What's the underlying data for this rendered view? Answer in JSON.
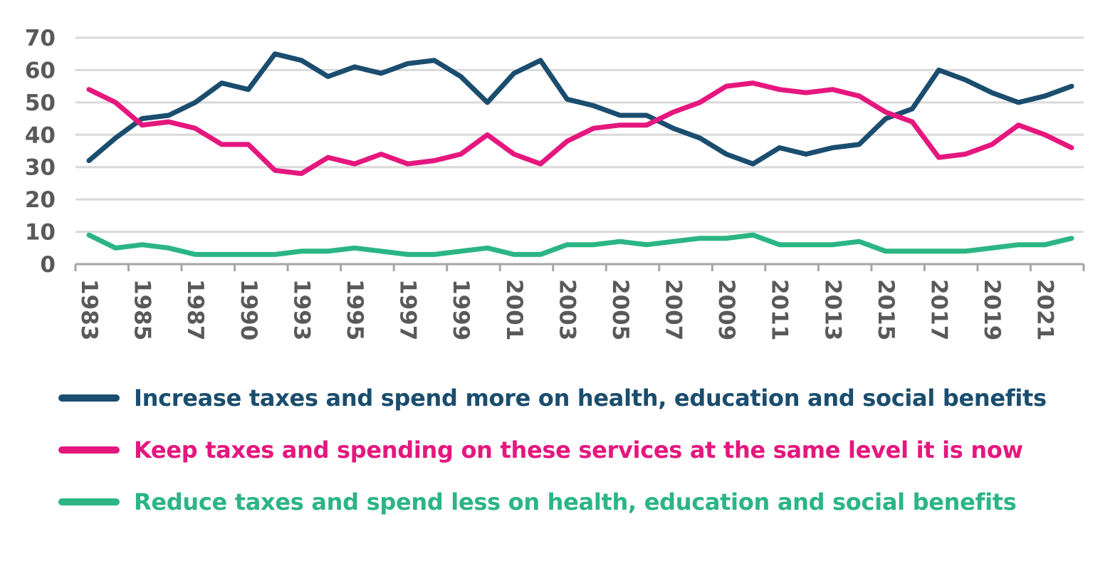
{
  "chart_data": {
    "type": "line",
    "title": "",
    "xlabel": "",
    "ylabel": "",
    "ylim": [
      0,
      70
    ],
    "yticks": [
      0,
      10,
      20,
      30,
      40,
      50,
      60,
      70
    ],
    "grid": true,
    "legend_position": "bottom",
    "x": [
      "1983",
      "1984",
      "1985",
      "1986",
      "1987",
      "1989",
      "1990",
      "1991",
      "1993",
      "1994",
      "1995",
      "1996",
      "1997",
      "1998",
      "1999",
      "2000",
      "2001",
      "2002",
      "2003",
      "2004",
      "2005",
      "2006",
      "2007",
      "2008",
      "2009",
      "2010",
      "2011",
      "2012",
      "2013",
      "2014",
      "2015",
      "2016",
      "2017",
      "2018",
      "2019",
      "2020",
      "2021",
      "2022"
    ],
    "x_tick_labels": [
      "1983",
      "1985",
      "1987",
      "1990",
      "1993",
      "1995",
      "1997",
      "1999",
      "2001",
      "2003",
      "2005",
      "2007",
      "2009",
      "2011",
      "2013",
      "2015",
      "2017",
      "2019",
      "2021"
    ],
    "series": [
      {
        "name": "Increase taxes and spend more on health, education and social benefits",
        "color": "#1a4d6e",
        "values": [
          32,
          39,
          45,
          46,
          50,
          56,
          54,
          65,
          63,
          58,
          61,
          59,
          62,
          63,
          58,
          50,
          59,
          63,
          51,
          49,
          46,
          46,
          42,
          39,
          34,
          31,
          36,
          34,
          36,
          37,
          45,
          48,
          60,
          57,
          53,
          50,
          52,
          55
        ]
      },
      {
        "name": "Keep taxes and spending on these services at the same level it is now",
        "color": "#e5177e",
        "values": [
          54,
          50,
          43,
          44,
          42,
          37,
          37,
          29,
          28,
          33,
          31,
          34,
          31,
          32,
          34,
          40,
          34,
          31,
          38,
          42,
          43,
          43,
          47,
          50,
          55,
          56,
          54,
          53,
          54,
          52,
          47,
          44,
          33,
          34,
          37,
          43,
          40,
          36
        ]
      },
      {
        "name": "Reduce taxes and spend less on health, education and social benefits",
        "color": "#2bb585",
        "values": [
          9,
          5,
          6,
          5,
          3,
          3,
          3,
          3,
          4,
          4,
          5,
          4,
          3,
          3,
          4,
          5,
          3,
          3,
          6,
          6,
          7,
          6,
          7,
          8,
          8,
          9,
          6,
          6,
          6,
          7,
          4,
          4,
          4,
          4,
          5,
          6,
          6,
          8
        ]
      }
    ]
  },
  "colors": {
    "grid": "#d9d9d9",
    "axis": "#a6a6a6",
    "tick_text": "#595959"
  }
}
